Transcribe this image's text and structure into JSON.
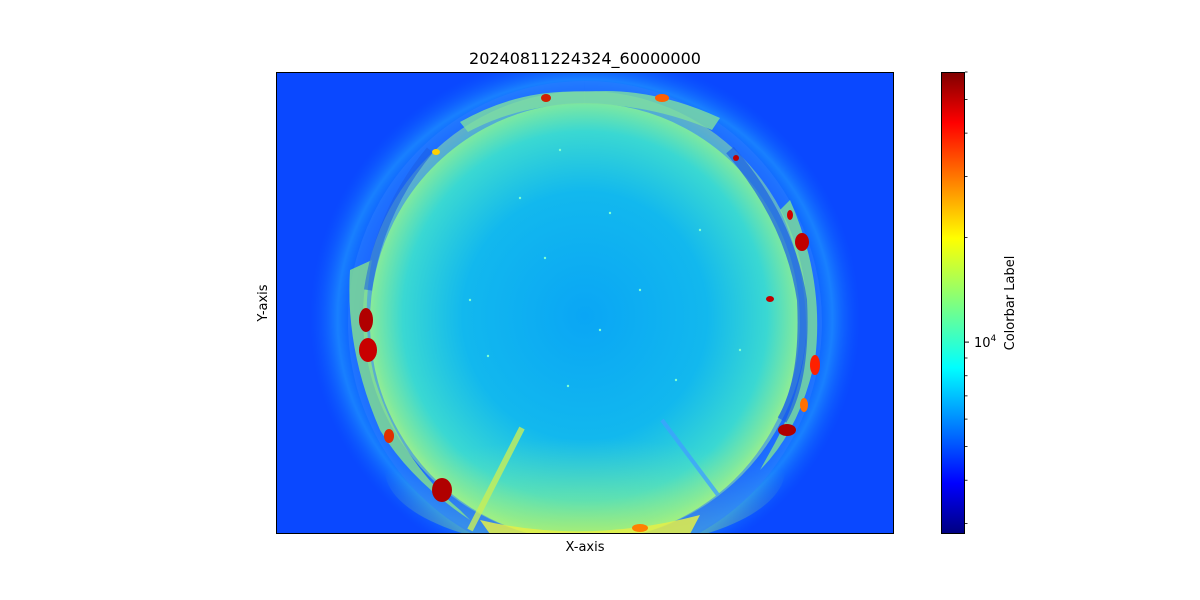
{
  "chart_data": {
    "type": "heatmap",
    "title": "20240811224324_60000000",
    "xlabel": "X-axis",
    "ylabel": "Y-axis",
    "x_ticks_visible": false,
    "y_ticks_visible": false,
    "image": "all-sky fisheye camera frame (circular sky view with horizon buildings and lights)",
    "colormap": "jet",
    "colormap_stops": [
      "#00007f",
      "#0000ff",
      "#007fff",
      "#00ffff",
      "#7fff7f",
      "#ffff00",
      "#ff7f00",
      "#ff0000",
      "#7f0000"
    ],
    "colorbar": {
      "label": "Colorbar Label",
      "scale": "log",
      "range_approx": [
        2800,
        60000
      ],
      "major_ticks": [
        {
          "value": 10000,
          "label_base": "10",
          "label_exp": "4"
        }
      ],
      "minor_tick_values": [
        3000,
        4000,
        5000,
        6000,
        7000,
        8000,
        9000,
        20000,
        30000,
        40000,
        50000,
        60000
      ]
    }
  }
}
